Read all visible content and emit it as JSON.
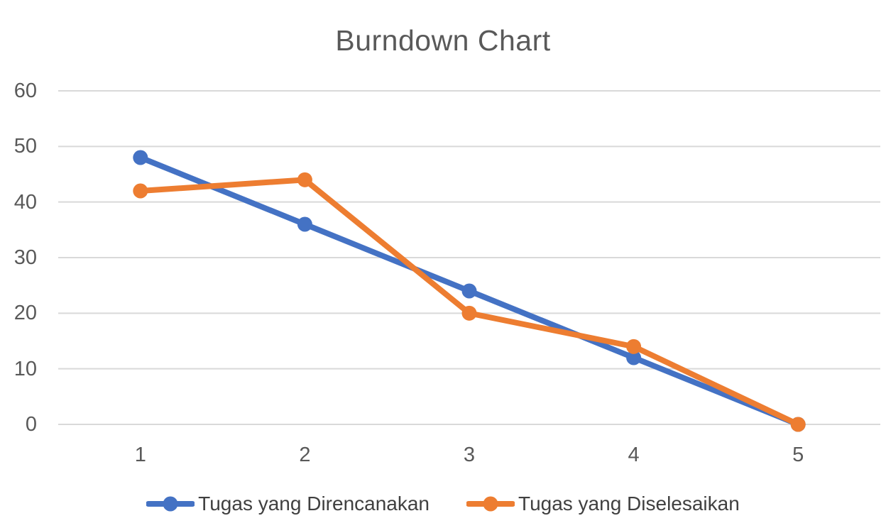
{
  "colors": {
    "series_blue": "#4472C4",
    "series_orange": "#ED7D31",
    "gridline": "#D9D9D9",
    "axis_text": "#595959",
    "title_text": "#595959",
    "legend_text": "#404040"
  },
  "chart_data": {
    "type": "line",
    "title": "Burndown Chart",
    "categories": [
      "1",
      "2",
      "3",
      "4",
      "5"
    ],
    "series": [
      {
        "name": "Tugas yang Direncanakan",
        "color": "#4472C4",
        "values": [
          48,
          36,
          24,
          12,
          0
        ]
      },
      {
        "name": "Tugas yang Diselesaikan",
        "color": "#ED7D31",
        "values": [
          42,
          44,
          20,
          14,
          0
        ]
      }
    ],
    "xlabel": "",
    "ylabel": "",
    "ylim": [
      0,
      60
    ],
    "yticks": [
      0,
      10,
      20,
      30,
      40,
      50,
      60
    ],
    "grid": true,
    "legend_position": "bottom-center",
    "marker": "circle"
  }
}
